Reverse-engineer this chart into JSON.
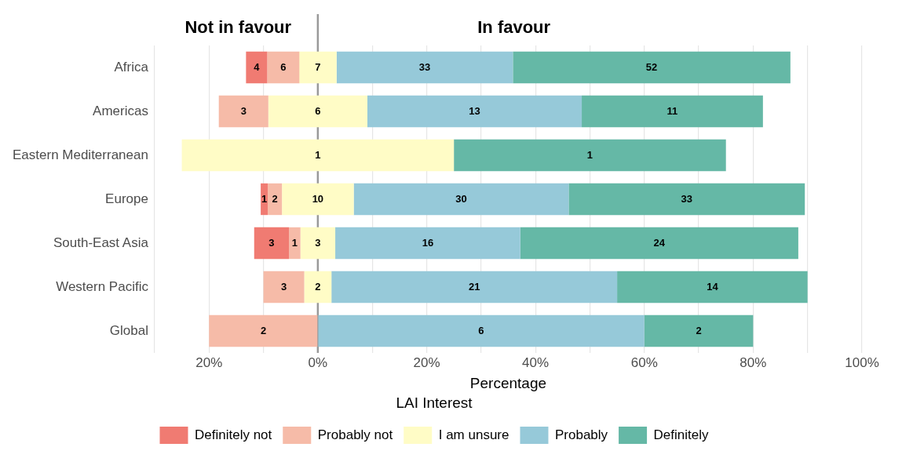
{
  "chart_data": {
    "type": "bar",
    "orientation": "horizontal",
    "xlabel": "Percentage",
    "legend_title": "LAI Interest",
    "legend": "bottom",
    "grid": "x",
    "annotations": [
      "Not in favour",
      "In favour",
      {
        "text": "4",
        "x": -11.25,
        "y": "Africa"
      },
      {
        "text": "6",
        "x": -6.35,
        "y": "Africa"
      },
      {
        "text": "7",
        "x": 0,
        "y": "Africa"
      },
      {
        "text": "33",
        "x": 19.65,
        "y": "Africa"
      },
      {
        "text": "52",
        "x": 61.35,
        "y": "Africa"
      },
      {
        "text": "3",
        "x": -13.65,
        "y": "Americas"
      },
      {
        "text": "6",
        "x": 0,
        "y": "Americas"
      },
      {
        "text": "13",
        "x": 28.8,
        "y": "Americas"
      },
      {
        "text": "11",
        "x": 65.15,
        "y": "Americas"
      },
      {
        "text": "1",
        "x": 0,
        "y": "Eastern Mediterranean"
      },
      {
        "text": "1",
        "x": 50,
        "y": "Eastern Mediterranean"
      },
      {
        "text": "1",
        "x": -9.85,
        "y": "Europe"
      },
      {
        "text": "2",
        "x": -7.9,
        "y": "Europe"
      },
      {
        "text": "10",
        "x": 0,
        "y": "Europe"
      },
      {
        "text": "30",
        "x": 26.35,
        "y": "Europe"
      },
      {
        "text": "33",
        "x": 67.8,
        "y": "Europe"
      },
      {
        "text": "3",
        "x": -8.5,
        "y": "South-East Asia"
      },
      {
        "text": "1",
        "x": -4.25,
        "y": "South-East Asia"
      },
      {
        "text": "3",
        "x": 0,
        "y": "South-East Asia"
      },
      {
        "text": "16",
        "x": 20.2,
        "y": "South-East Asia"
      },
      {
        "text": "24",
        "x": 62.75,
        "y": "South-East Asia"
      },
      {
        "text": "3",
        "x": -6.25,
        "y": "Western Pacific"
      },
      {
        "text": "2",
        "x": 0,
        "y": "Western Pacific"
      },
      {
        "text": "21",
        "x": 28.75,
        "y": "Western Pacific"
      },
      {
        "text": "14",
        "x": 72.5,
        "y": "Western Pacific"
      },
      {
        "text": "2",
        "x": -10,
        "y": "Global"
      },
      {
        "text": "6",
        "x": 30,
        "y": "Global"
      },
      {
        "text": "2",
        "x": 70,
        "y": "Global"
      }
    ],
    "categories": [
      "Africa",
      "Americas",
      "Eastern Mediterranean",
      "Europe",
      "South-East Asia",
      "Western Pacific",
      "Global"
    ],
    "xlim": [
      -30,
      100
    ],
    "xticks": [
      {
        "value": -30,
        "label": null
      },
      {
        "value": -20,
        "label": "20%"
      },
      {
        "value": -10,
        "label": null
      },
      {
        "value": 0,
        "label": "0%"
      },
      {
        "value": 10,
        "label": null
      },
      {
        "value": 20,
        "label": "20%"
      },
      {
        "value": 30,
        "label": null
      },
      {
        "value": 40,
        "label": "40%"
      },
      {
        "value": 50,
        "label": null
      },
      {
        "value": 60,
        "label": "60%"
      },
      {
        "value": 70,
        "label": null
      },
      {
        "value": 80,
        "label": "80%"
      },
      {
        "value": 90,
        "label": null
      },
      {
        "value": 100,
        "label": "100%"
      }
    ],
    "ref_lines": [
      {
        "axis": "x",
        "value": 0,
        "color": "#999999"
      }
    ],
    "series": [
      {
        "name": "Definitely not",
        "color": "#f07b72",
        "base": [
          -13.2,
          null,
          null,
          -10.5,
          -11.7,
          null,
          null
        ],
        "values": [
          3.9,
          null,
          null,
          1.3,
          6.4,
          null,
          null
        ]
      },
      {
        "name": "Probably not",
        "color": "#f6bba8",
        "base": [
          -9.3,
          -18.2,
          null,
          -9.2,
          -5.3,
          -10,
          -20
        ],
        "values": [
          5.9,
          9.1,
          null,
          2.6,
          2.1,
          7.5,
          20
        ]
      },
      {
        "name": "I am unsure",
        "color": "#fffcc6",
        "base": [
          -3.45,
          -9.1,
          -25,
          -6.6,
          -3.2,
          -2.5,
          null
        ],
        "values": [
          6.9,
          18.2,
          50,
          13.2,
          6.4,
          5,
          null
        ]
      },
      {
        "name": "Probably",
        "color": "#96c9d9",
        "base": [
          3.45,
          9.1,
          null,
          6.6,
          3.2,
          2.5,
          0
        ],
        "values": [
          32.4,
          39.4,
          null,
          39.5,
          34.0,
          52.5,
          60
        ]
      },
      {
        "name": "Definitely",
        "color": "#65b8a6",
        "base": [
          35.85,
          48.5,
          25,
          46.1,
          37.2,
          55,
          60
        ],
        "values": [
          51.0,
          33.3,
          50,
          43.4,
          51.1,
          35,
          20
        ]
      }
    ]
  }
}
